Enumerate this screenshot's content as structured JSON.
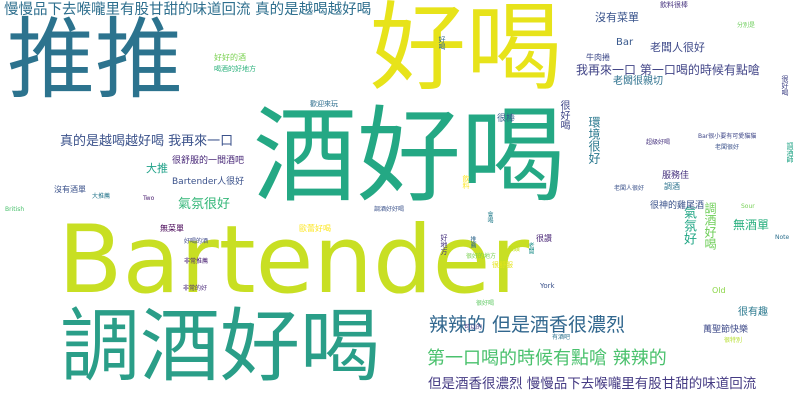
{
  "words": [
    {
      "text": "Bartender",
      "color": "#c8df23",
      "vertical": false
    },
    {
      "text": "酒好喝",
      "color": "#24a884",
      "vertical": false
    },
    {
      "text": "調酒好喝",
      "color": "#2a9e88",
      "vertical": false
    },
    {
      "text": "推推",
      "color": "#2c738e",
      "vertical": false
    },
    {
      "text": "好喝",
      "color": "#e7e31a",
      "vertical": false
    },
    {
      "text": "慢慢品下去喉嚨里有股甘甜的味道回流 真的是越喝越好喝",
      "color": "#2e6f8e",
      "vertical": false
    },
    {
      "text": "辣辣的 但是酒香很濃烈",
      "color": "#31678e",
      "vertical": false
    },
    {
      "text": "第一口喝的時候有點嗆 辣辣的",
      "color": "#4ac16d",
      "vertical": false
    },
    {
      "text": "但是酒香很濃烈 慢慢品下去喉嚨里有股甘甜的味道回流",
      "color": "#443a83",
      "vertical": false
    },
    {
      "text": "真的是越喝越好喝 我再來一口",
      "color": "#3b528b",
      "vertical": false
    },
    {
      "text": "我再來一口 第一口喝的時候有點嗆",
      "color": "#414487",
      "vertical": false
    },
    {
      "text": "老闆人很好",
      "color": "#3e4989",
      "vertical": false
    },
    {
      "text": "氣氛很好",
      "color": "#35b779",
      "vertical": false
    },
    {
      "text": "沒有菜單",
      "color": "#3a548c",
      "vertical": false
    },
    {
      "text": "無酒單",
      "color": "#2ab07f",
      "vertical": false
    },
    {
      "text": "氣氛好",
      "color": "#21a685",
      "vertical": true
    },
    {
      "text": "調酒好喝",
      "color": "#6ece58",
      "vertical": true
    },
    {
      "text": "環境很好",
      "color": "#2a788e",
      "vertical": true
    },
    {
      "text": "很好喝",
      "color": "#3f4788",
      "vertical": true
    },
    {
      "text": "很棒",
      "color": "#355f8d",
      "vertical": false
    },
    {
      "text": "老闆很親切",
      "color": "#2d718e",
      "vertical": false
    },
    {
      "text": "大推",
      "color": "#1fa188",
      "vertical": false
    },
    {
      "text": "很舒服的一間酒吧",
      "color": "#482878",
      "vertical": false
    },
    {
      "text": "Bartender人很好",
      "color": "#3b528b",
      "vertical": false
    },
    {
      "text": "服務佳",
      "color": "#46327e",
      "vertical": false
    },
    {
      "text": "調酒",
      "color": "#2c738e",
      "vertical": false
    },
    {
      "text": "很讚",
      "color": "#482475",
      "vertical": false
    },
    {
      "text": "很神的雞尾酒",
      "color": "#3b528b",
      "vertical": false
    },
    {
      "text": "很有趣",
      "color": "#2a788e",
      "vertical": false
    },
    {
      "text": "Bar",
      "color": "#38588c",
      "vertical": false
    },
    {
      "text": "Old",
      "color": "#8bd646",
      "vertical": false
    },
    {
      "text": "York",
      "color": "#3b528b",
      "vertical": false
    },
    {
      "text": "萬聖節快樂",
      "color": "#3e4a89",
      "vertical": false
    },
    {
      "text": "歐蕾好喝",
      "color": "#fde725",
      "vertical": false
    },
    {
      "text": "好好的酒",
      "color": "#7ad151",
      "vertical": false
    },
    {
      "text": "很舒服",
      "color": "#e5e419",
      "vertical": false
    },
    {
      "text": "飲料很棒",
      "color": "#46337f",
      "vertical": false
    },
    {
      "text": "牛肉捲",
      "color": "#3e4a89",
      "vertical": false
    },
    {
      "text": "歡迎來玩",
      "color": "#2e6e8e",
      "vertical": false
    },
    {
      "text": "沒有酒單",
      "color": "#3b528b",
      "vertical": false
    },
    {
      "text": "無菜單",
      "color": "#440154",
      "vertical": false
    },
    {
      "text": "很好的地方",
      "color": "#7ad151",
      "vertical": false
    },
    {
      "text": "很好喝",
      "color": "#5ec962",
      "vertical": false
    },
    {
      "text": "調酒好好喝",
      "color": "#3b528b",
      "vertical": false
    },
    {
      "text": "喝酒的好地方",
      "color": "#2db27d",
      "vertical": false
    },
    {
      "text": "好喝",
      "color": "#31688e",
      "vertical": true
    },
    {
      "text": "好地方",
      "color": "#46327e",
      "vertical": true
    },
    {
      "text": "飲料",
      "color": "#fde725",
      "vertical": true
    },
    {
      "text": "推薦",
      "color": "#31688e",
      "vertical": true
    },
    {
      "text": "老闆",
      "color": "#21918c",
      "vertical": true
    },
    {
      "text": "會喝",
      "color": "#277f8e",
      "vertical": true
    },
    {
      "text": "很好喝",
      "color": "#414487",
      "vertical": true
    },
    {
      "text": "調酒師",
      "color": "#20a486",
      "vertical": true
    },
    {
      "text": "非常推薦",
      "color": "#482173",
      "vertical": false
    },
    {
      "text": "大推薦",
      "color": "#2a788e",
      "vertical": false
    },
    {
      "text": "好喝的酒",
      "color": "#3e4989",
      "vertical": false
    },
    {
      "text": "非常的好",
      "color": "#482878",
      "vertical": false
    },
    {
      "text": "可以的",
      "color": "#453781",
      "vertical": false
    },
    {
      "text": "有酒吧",
      "color": "#2c728e",
      "vertical": false
    },
    {
      "text": "老闆人很好",
      "color": "#3b528b",
      "vertical": false
    },
    {
      "text": "很讚",
      "color": "#c2df23",
      "vertical": false
    },
    {
      "text": "分別是",
      "color": "#6ccd5a",
      "vertical": false
    },
    {
      "text": "超級好喝",
      "color": "#46327e",
      "vertical": false
    },
    {
      "text": "Bar很小要有可愛貓貓",
      "color": "#3f4788",
      "vertical": false
    },
    {
      "text": "老闆很好",
      "color": "#3b528b",
      "vertical": false
    },
    {
      "text": "很特別",
      "color": "#b5de2b",
      "vertical": false
    },
    {
      "text": "Sour",
      "color": "#75d054",
      "vertical": false
    },
    {
      "text": "British",
      "color": "#4ac16d",
      "vertical": false
    },
    {
      "text": "Two",
      "color": "#481d6f",
      "vertical": false
    },
    {
      "text": "Note",
      "color": "#2d708e",
      "vertical": false
    }
  ]
}
